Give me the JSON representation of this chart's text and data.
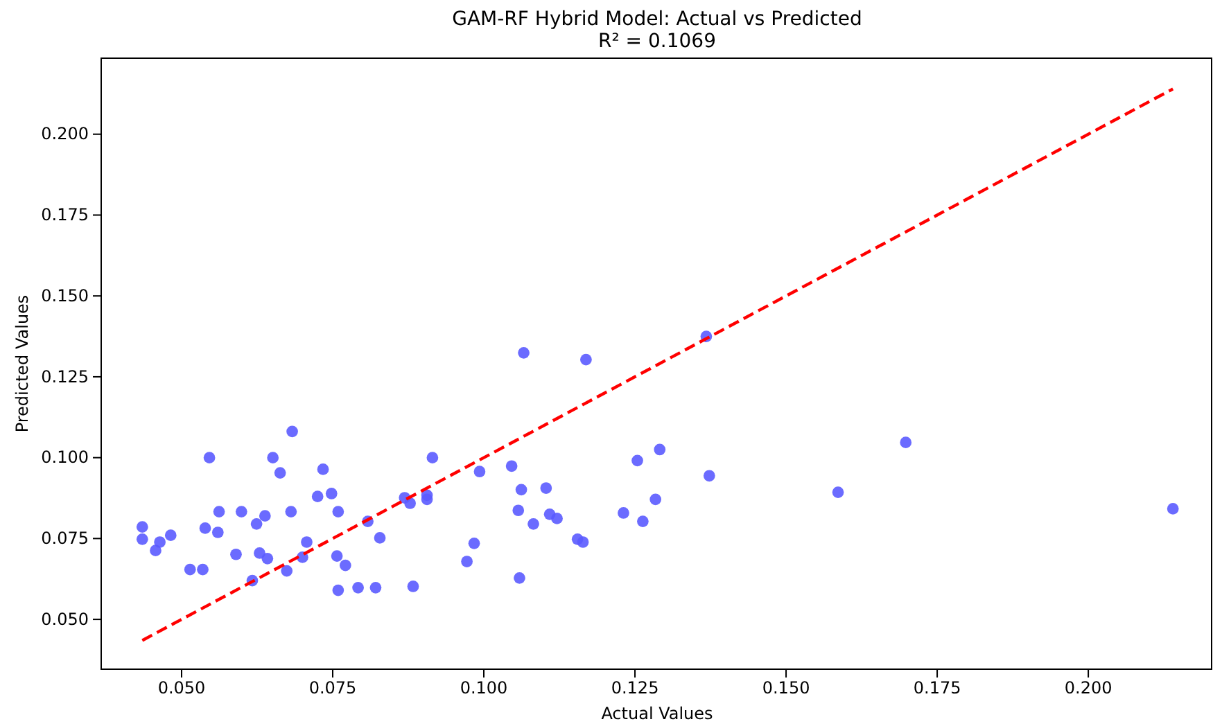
{
  "chart_data": {
    "type": "scatter",
    "title": "GAM-RF Hybrid Model: Actual vs Predicted",
    "subtitle": "R² = 0.1069",
    "xlabel": "Actual Values",
    "ylabel": "Predicted Values",
    "xlim": [
      0.0367,
      0.2204
    ],
    "ylim": [
      0.0346,
      0.2235
    ],
    "xticks": [
      {
        "value": 0.05,
        "label": "0.050"
      },
      {
        "value": 0.075,
        "label": "0.075"
      },
      {
        "value": 0.1,
        "label": "0.100"
      },
      {
        "value": 0.125,
        "label": "0.125"
      },
      {
        "value": 0.15,
        "label": "0.150"
      },
      {
        "value": 0.175,
        "label": "0.175"
      },
      {
        "value": 0.2,
        "label": "0.200"
      }
    ],
    "yticks": [
      {
        "value": 0.05,
        "label": "0.050"
      },
      {
        "value": 0.075,
        "label": "0.075"
      },
      {
        "value": 0.1,
        "label": "0.100"
      },
      {
        "value": 0.125,
        "label": "0.125"
      },
      {
        "value": 0.15,
        "label": "0.150"
      },
      {
        "value": 0.175,
        "label": "0.175"
      },
      {
        "value": 0.2,
        "label": "0.200"
      }
    ],
    "marker": "circle",
    "grid": false,
    "series": [
      {
        "color": "#5b5bff",
        "x": [
          0.0435,
          0.0435,
          0.0457,
          0.0464,
          0.0482,
          0.0514,
          0.0535,
          0.0539,
          0.0546,
          0.056,
          0.0562,
          0.059,
          0.0599,
          0.0617,
          0.0624,
          0.0629,
          0.0638,
          0.0642,
          0.0651,
          0.0663,
          0.0674,
          0.0681,
          0.0683,
          0.07,
          0.0707,
          0.0725,
          0.0734,
          0.0748,
          0.0757,
          0.0759,
          0.0759,
          0.0771,
          0.0792,
          0.0808,
          0.0821,
          0.0828,
          0.0869,
          0.0878,
          0.0883,
          0.0906,
          0.0906,
          0.0915,
          0.0972,
          0.0984,
          0.0993,
          0.1046,
          0.1057,
          0.1059,
          0.1062,
          0.1066,
          0.1082,
          0.1103,
          0.1109,
          0.1121,
          0.1155,
          0.1164,
          0.1169,
          0.1231,
          0.1254,
          0.1263,
          0.1284,
          0.1291,
          0.1368,
          0.1373,
          0.1586,
          0.1698,
          0.214
        ],
        "values": [
          0.0786,
          0.0748,
          0.0713,
          0.0739,
          0.076,
          0.0654,
          0.0654,
          0.0782,
          0.1,
          0.0769,
          0.0833,
          0.0701,
          0.0833,
          0.062,
          0.0795,
          0.0705,
          0.082,
          0.0688,
          0.1,
          0.0953,
          0.065,
          0.0833,
          0.1081,
          0.0692,
          0.0739,
          0.088,
          0.0964,
          0.0889,
          0.0696,
          0.059,
          0.0833,
          0.0667,
          0.0598,
          0.0803,
          0.0598,
          0.0752,
          0.0876,
          0.0859,
          0.0602,
          0.0884,
          0.0871,
          0.1,
          0.0679,
          0.0735,
          0.0957,
          0.0974,
          0.0837,
          0.0628,
          0.0901,
          0.1324,
          0.0795,
          0.0906,
          0.0825,
          0.0812,
          0.0748,
          0.0739,
          0.1303,
          0.0829,
          0.0991,
          0.0803,
          0.0871,
          0.1025,
          0.1375,
          0.0944,
          0.0893,
          0.1047,
          0.0842
        ]
      },
      {
        "type": "line",
        "color": "#ff0000",
        "line_style": "dashed",
        "marker": "none",
        "x": [
          0.0435,
          0.214
        ],
        "values": [
          0.0435,
          0.214
        ]
      }
    ]
  }
}
